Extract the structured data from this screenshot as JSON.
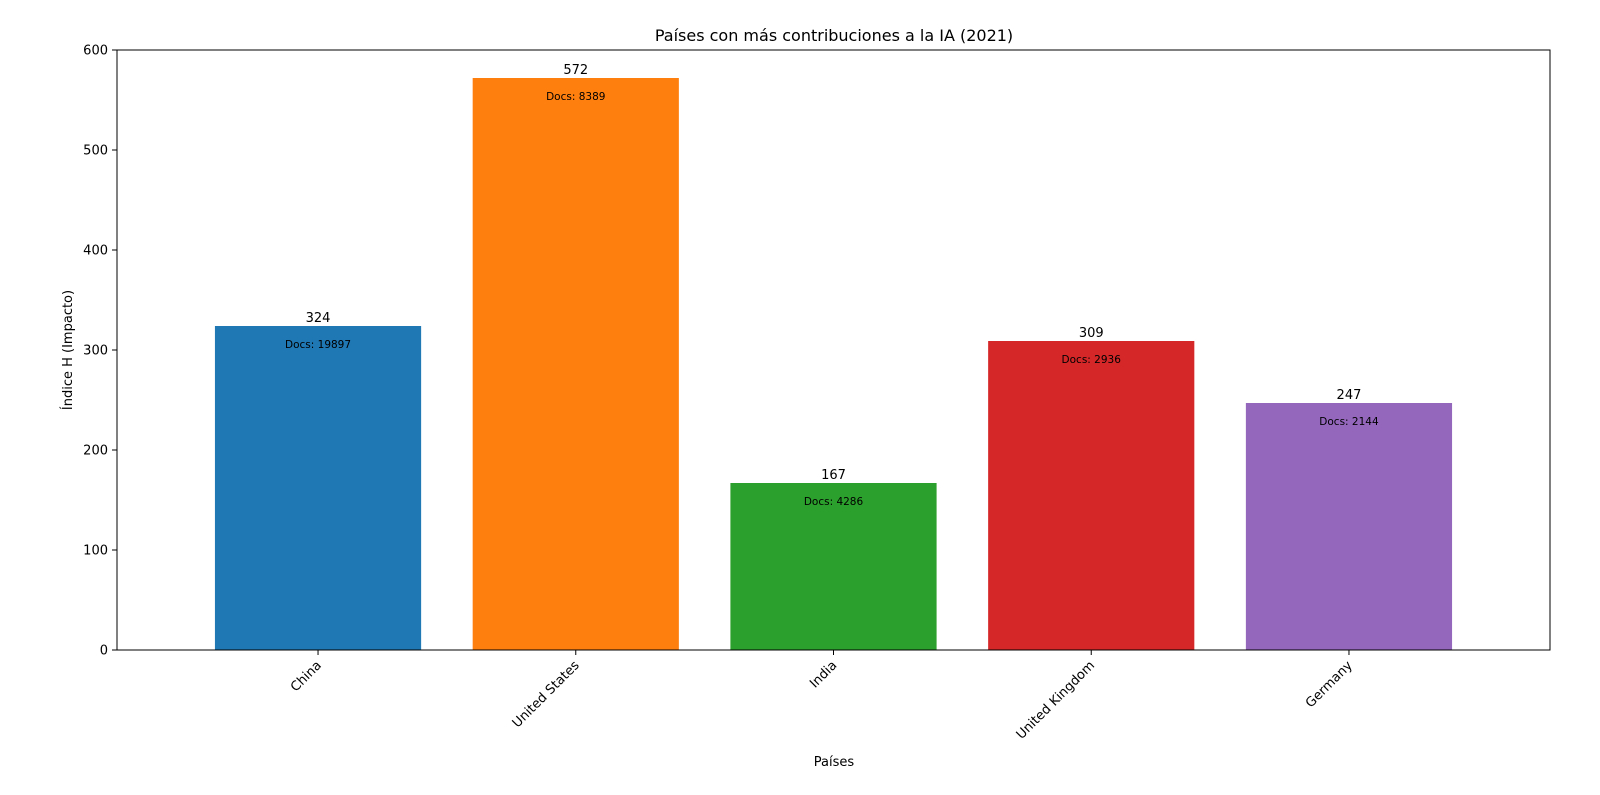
{
  "chart_data": {
    "type": "bar",
    "title": "Países con más contribuciones a la IA (2021)",
    "xlabel": "Países",
    "ylabel": "Índice H (Impacto)",
    "ylim": [
      0,
      600
    ],
    "yticks": [
      0,
      100,
      200,
      300,
      400,
      500,
      600
    ],
    "grid": false,
    "categories": [
      "China",
      "United States",
      "India",
      "United Kingdom",
      "Germany"
    ],
    "values": [
      324,
      572,
      167,
      309,
      247
    ],
    "annotations": [
      "Docs: 19897",
      "Docs: 8389",
      "Docs: 4286",
      "Docs: 2936",
      "Docs: 2144"
    ],
    "colors": [
      "#1f77b4",
      "#ff7f0e",
      "#2ca02c",
      "#d62728",
      "#9467bd"
    ]
  }
}
